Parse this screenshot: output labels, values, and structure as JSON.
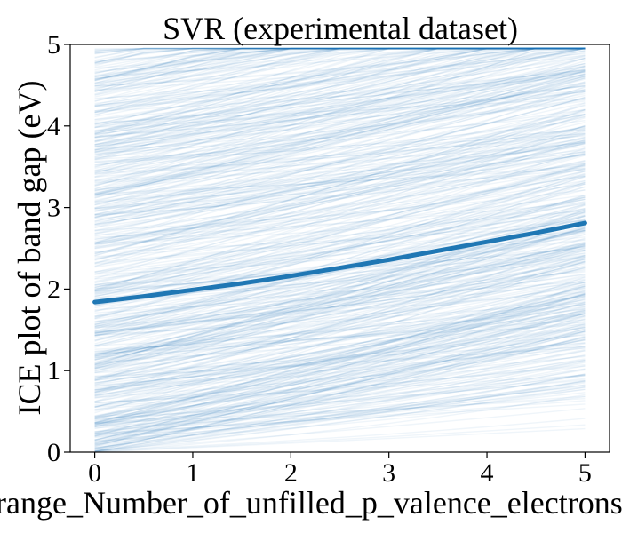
{
  "chart_data": {
    "type": "line",
    "title": "SVR (experimental dataset)",
    "xlabel": "range_Number_of_unfilled_p_valence_electrons",
    "ylabel": "ICE plot of band gap (eV)",
    "xlim": [
      -0.25,
      5.25
    ],
    "ylim": [
      0,
      5
    ],
    "xticks": [
      0,
      1,
      2,
      3,
      4,
      5
    ],
    "yticks": [
      0,
      1,
      2,
      3,
      4,
      5
    ],
    "grid": false,
    "series": [
      {
        "x": [
          0,
          0.5,
          1,
          1.5,
          2,
          2.5,
          3,
          3.5,
          4,
          4.5,
          5
        ],
        "values": [
          1.84,
          1.91,
          1.99,
          2.07,
          2.16,
          2.26,
          2.36,
          2.47,
          2.58,
          2.69,
          2.81
        ],
        "color": "#1f77b4",
        "role": "average"
      }
    ],
    "ice_lines": {
      "count": 600,
      "x": [
        0,
        5
      ],
      "y_range": [
        0,
        4.95
      ],
      "slope_range": [
        0.05,
        0.35
      ],
      "color": "#1f77b4",
      "opacity": 0.07
    }
  }
}
